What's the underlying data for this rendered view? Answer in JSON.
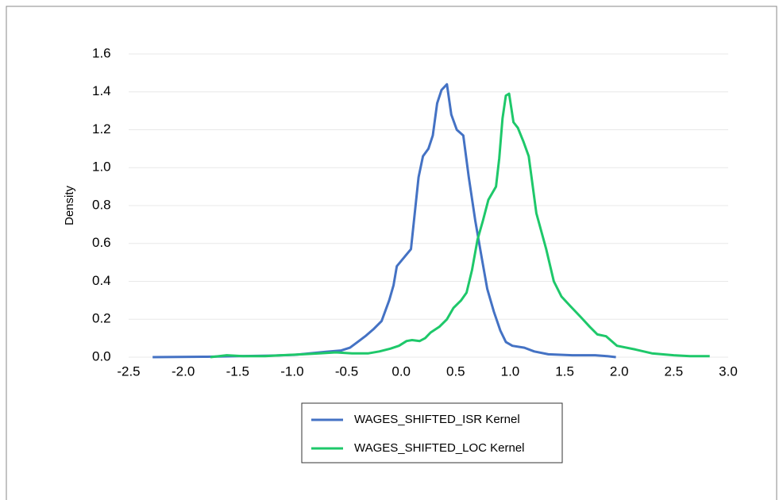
{
  "chart_data": {
    "type": "line",
    "y_label": "Density",
    "xlim": [
      -2.5,
      3.0
    ],
    "ylim": [
      0,
      1.6
    ],
    "xticks": [
      -2.5,
      {
        "value": -2,
        "label": "-2.0"
      },
      -1.5,
      {
        "value": -1,
        "label": "-1.0"
      },
      -0.5,
      {
        "value": 0,
        "label": "0.0"
      },
      0.5,
      {
        "value": 1,
        "label": "1.0"
      },
      1.5,
      {
        "value": 2,
        "label": "2.0"
      },
      2.5,
      {
        "value": 3,
        "label": "3.0"
      }
    ],
    "yticks": [
      {
        "value": 0,
        "label": "0.0"
      },
      0.2,
      0.4,
      0.6,
      0.8,
      {
        "value": 1,
        "label": "1.0"
      },
      1.2,
      1.4,
      1.6
    ],
    "grid": true,
    "legend": "bottom",
    "series": [
      {
        "name": "WAGES_SHIFTED_ISR Kernel",
        "color": "#4472c4",
        "x": [
          -2.28,
          -1.78,
          -1.5,
          -1.2,
          -0.98,
          -0.84,
          -0.69,
          -0.55,
          -0.47,
          -0.4,
          -0.33,
          -0.25,
          -0.18,
          -0.11,
          -0.07,
          -0.04,
          0.09,
          0.16,
          0.2,
          0.25,
          0.29,
          0.33,
          0.37,
          0.42,
          0.46,
          0.51,
          0.57,
          0.62,
          0.68,
          0.74,
          0.79,
          0.85,
          0.91,
          0.96,
          1.02,
          1.13,
          1.22,
          1.35,
          1.57,
          1.78,
          1.89,
          1.97
        ],
        "values": [
          0,
          0.002,
          0.005,
          0.008,
          0.012,
          0.02,
          0.028,
          0.035,
          0.05,
          0.08,
          0.11,
          0.15,
          0.19,
          0.3,
          0.38,
          0.48,
          0.57,
          0.95,
          1.06,
          1.1,
          1.17,
          1.34,
          1.41,
          1.44,
          1.28,
          1.2,
          1.17,
          0.95,
          0.72,
          0.52,
          0.36,
          0.24,
          0.14,
          0.08,
          0.06,
          0.05,
          0.03,
          0.015,
          0.01,
          0.01,
          0.005,
          0
        ]
      },
      {
        "name": "WAGES_SHIFTED_LOC Kernel",
        "color": "#1ec86a",
        "x": [
          -1.75,
          -1.6,
          -1.45,
          -1.25,
          -1.1,
          -0.9,
          -0.75,
          -0.6,
          -0.45,
          -0.3,
          -0.2,
          -0.1,
          -0.02,
          0.05,
          0.1,
          0.17,
          0.22,
          0.27,
          0.35,
          0.42,
          0.48,
          0.55,
          0.6,
          0.65,
          0.7,
          0.75,
          0.8,
          0.87,
          0.9,
          0.93,
          0.96,
          0.99,
          1.03,
          1.07,
          1.12,
          1.17,
          1.24,
          1.33,
          1.4,
          1.47,
          1.55,
          1.65,
          1.73,
          1.8,
          1.88,
          1.98,
          2.15,
          2.3,
          2.5,
          2.65,
          2.83
        ],
        "values": [
          0,
          0.01,
          0.005,
          0.005,
          0.01,
          0.015,
          0.02,
          0.025,
          0.02,
          0.02,
          0.03,
          0.045,
          0.06,
          0.085,
          0.09,
          0.085,
          0.1,
          0.13,
          0.16,
          0.2,
          0.26,
          0.3,
          0.34,
          0.46,
          0.62,
          0.72,
          0.83,
          0.9,
          1.05,
          1.26,
          1.38,
          1.39,
          1.24,
          1.21,
          1.14,
          1.06,
          0.76,
          0.57,
          0.4,
          0.32,
          0.27,
          0.21,
          0.16,
          0.12,
          0.11,
          0.06,
          0.04,
          0.02,
          0.01,
          0.005,
          0.005
        ]
      }
    ]
  }
}
